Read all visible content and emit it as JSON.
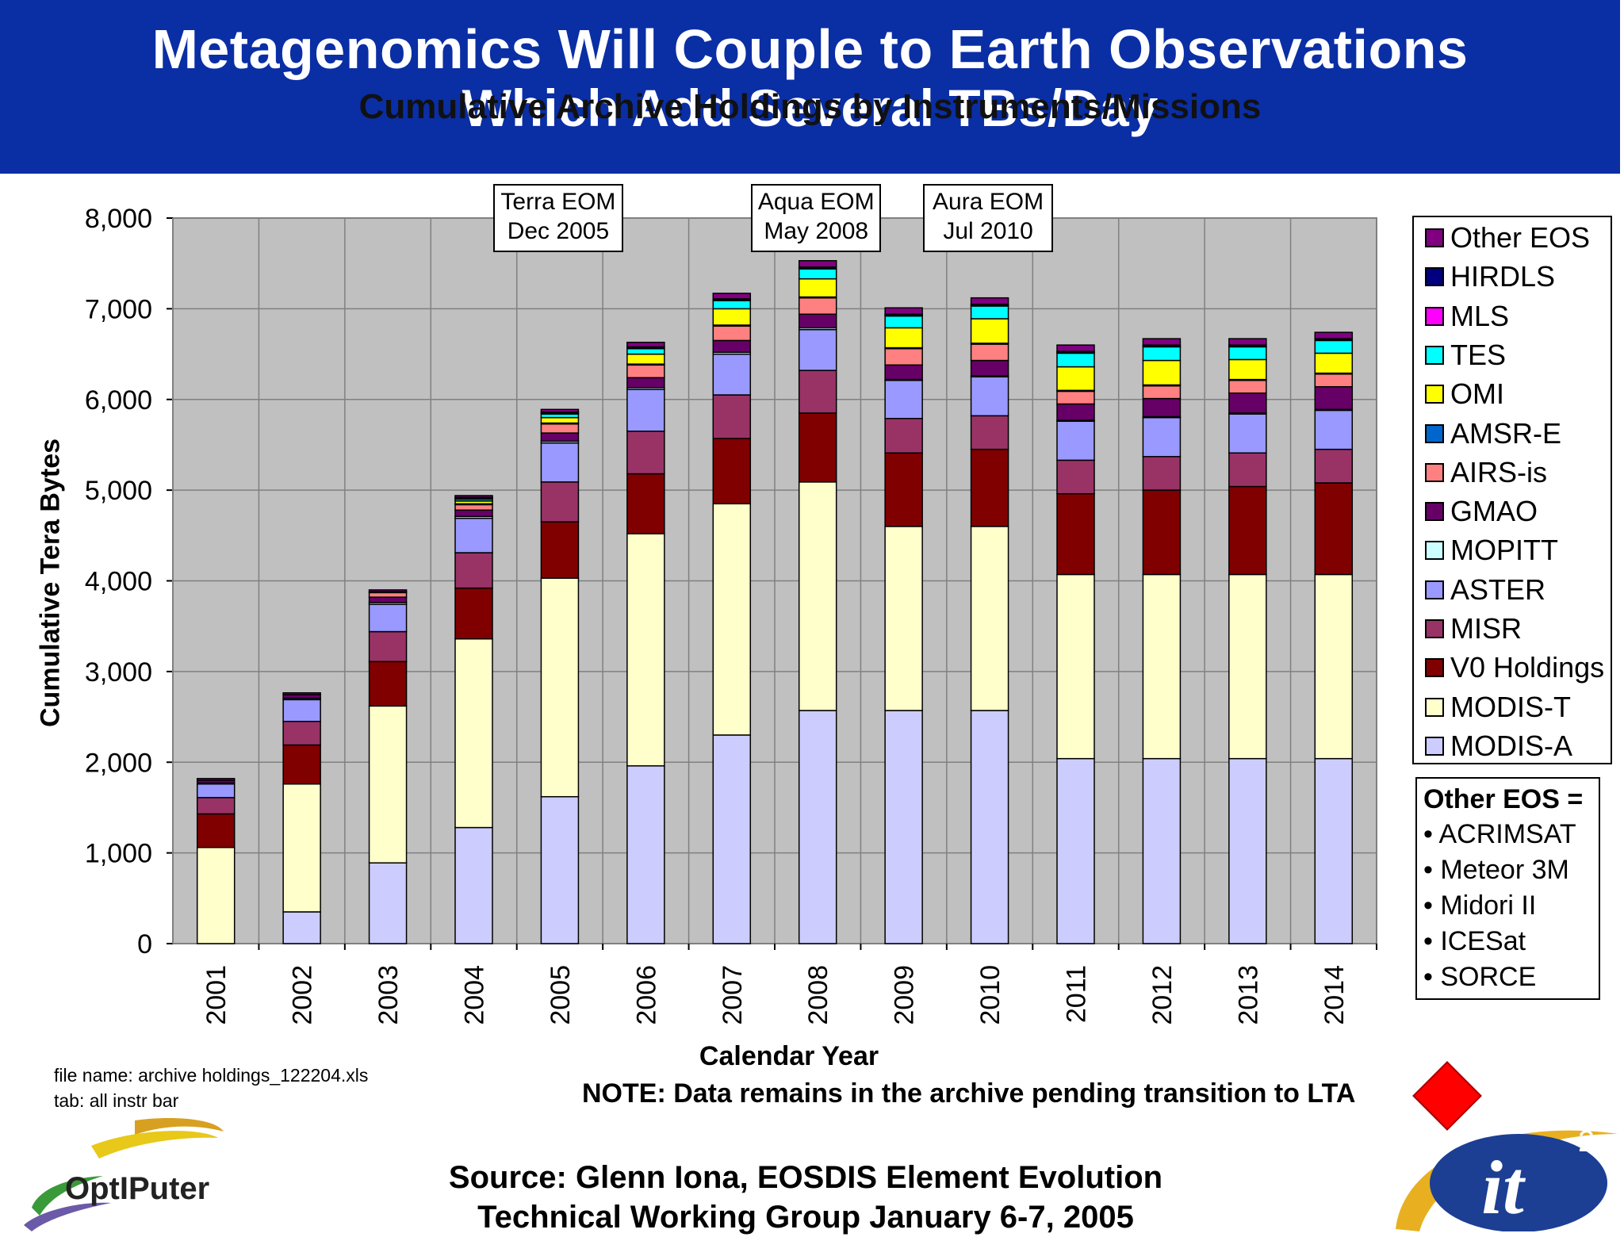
{
  "slide": {
    "title_line1": "Metagenomics Will Couple to Earth Observations",
    "title_line2": "Which Add Several TBs/Day",
    "file_name": "file name: archive holdings_122204.xls",
    "tab": "tab: all instr bar",
    "note": "NOTE: Data remains in the archive pending transition to LTA",
    "source_line1": "Source: Glenn Iona, EOSDIS Element Evolution",
    "source_line2": "Technical Working Group January 6-7, 2005",
    "logo_left_text": "OptIPuter",
    "logo_right_text": "it",
    "logo_right_sup": "2"
  },
  "other_eos": {
    "title": "Other EOS =",
    "items": [
      "• ACRIMSAT",
      "• Meteor 3M",
      "• Midori II",
      "• ICESat",
      "• SORCE"
    ]
  },
  "annotations": [
    {
      "line1": "Terra EOM",
      "line2": "Dec 2005",
      "year": "2005"
    },
    {
      "line1": "Aqua EOM",
      "line2": "May 2008",
      "year": "2008"
    },
    {
      "line1": "Aura EOM",
      "line2": "Jul 2010",
      "year": "2010"
    }
  ],
  "chart_data": {
    "type": "bar",
    "stacked": true,
    "title": "Cumulative Archive Holdings by Instruments/Missions",
    "xlabel": "Calendar Year",
    "ylabel": "Cumulative Tera Bytes",
    "ylim": [
      0,
      8000
    ],
    "yticks": [
      "0",
      "1,000",
      "2,000",
      "3,000",
      "4,000",
      "5,000",
      "6,000",
      "7,000",
      "8,000"
    ],
    "grid": true,
    "legend_position": "right",
    "categories": [
      "2001",
      "2002",
      "2003",
      "2004",
      "2005",
      "2006",
      "2007",
      "2008",
      "2009",
      "2010",
      "2011",
      "2012",
      "2013",
      "2014"
    ],
    "series": [
      {
        "name": "MODIS-A",
        "color": "#ccccff",
        "values": [
          0,
          350,
          890,
          1280,
          1620,
          1960,
          2300,
          2570,
          2570,
          2570,
          2040,
          2040,
          2040,
          2040
        ]
      },
      {
        "name": "MODIS-T",
        "color": "#ffffcc",
        "values": [
          1060,
          1410,
          1730,
          2080,
          2410,
          2560,
          2550,
          2520,
          2030,
          2030,
          2030,
          2030,
          2030,
          2030
        ]
      },
      {
        "name": "V0 Holdings",
        "color": "#800000",
        "values": [
          370,
          430,
          490,
          560,
          620,
          660,
          720,
          760,
          810,
          850,
          890,
          930,
          970,
          1010
        ]
      },
      {
        "name": "MISR",
        "color": "#993366",
        "values": [
          180,
          260,
          330,
          390,
          440,
          470,
          480,
          470,
          380,
          370,
          370,
          370,
          370,
          370
        ]
      },
      {
        "name": "ASTER",
        "color": "#9999ff",
        "values": [
          150,
          240,
          300,
          380,
          430,
          460,
          450,
          450,
          420,
          430,
          430,
          430,
          430,
          430
        ]
      },
      {
        "name": "MOPITT",
        "color": "#ccffff",
        "values": [
          10,
          15,
          20,
          20,
          20,
          20,
          20,
          20,
          10,
          10,
          10,
          10,
          10,
          10
        ]
      },
      {
        "name": "GMAO",
        "color": "#660066",
        "values": [
          30,
          40,
          60,
          70,
          90,
          110,
          130,
          150,
          160,
          170,
          180,
          200,
          220,
          250
        ]
      },
      {
        "name": "AIRS-is",
        "color": "#ff8080",
        "values": [
          0,
          0,
          50,
          60,
          100,
          140,
          160,
          180,
          180,
          180,
          140,
          140,
          140,
          140
        ]
      },
      {
        "name": "AMSR-E",
        "color": "#0066cc",
        "values": [
          0,
          0,
          10,
          10,
          10,
          10,
          10,
          10,
          10,
          10,
          10,
          10,
          10,
          10
        ]
      },
      {
        "name": "OMI",
        "color": "#ffff00",
        "values": [
          0,
          0,
          0,
          30,
          60,
          110,
          180,
          200,
          220,
          270,
          260,
          270,
          220,
          220
        ]
      },
      {
        "name": "TES",
        "color": "#00ffff",
        "values": [
          0,
          0,
          0,
          20,
          40,
          60,
          90,
          110,
          130,
          140,
          150,
          150,
          140,
          140
        ]
      },
      {
        "name": "MLS",
        "color": "#ff00ff",
        "values": [
          0,
          0,
          0,
          10,
          10,
          10,
          10,
          10,
          10,
          10,
          10,
          10,
          10,
          10
        ]
      },
      {
        "name": "HIRDLS",
        "color": "#000080",
        "values": [
          0,
          0,
          0,
          10,
          10,
          10,
          10,
          10,
          10,
          10,
          10,
          10,
          10,
          10
        ]
      },
      {
        "name": "Other EOS",
        "color": "#800080",
        "values": [
          20,
          20,
          20,
          20,
          30,
          50,
          60,
          70,
          70,
          70,
          70,
          70,
          70,
          70
        ]
      }
    ]
  }
}
